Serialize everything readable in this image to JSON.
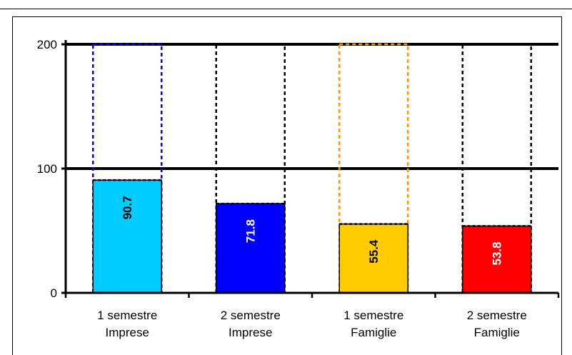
{
  "chart_data": {
    "type": "bar",
    "categories": [
      [
        "1 semestre",
        "Imprese"
      ],
      [
        "2 semestre",
        "Imprese"
      ],
      [
        "1 semestre",
        "Famiglie"
      ],
      [
        "2 semestre",
        "Famiglie"
      ]
    ],
    "values": [
      90.7,
      71.8,
      55.4,
      53.8
    ],
    "value_labels": [
      "90.7",
      "71.8",
      "55.4",
      "53.8"
    ],
    "bar_colors": [
      "#00ccff",
      "#0000ff",
      "#ffcc00",
      "#ff0000"
    ],
    "outline_colors": [
      "#0000ff",
      "#000000",
      "#ff9900",
      "#000000"
    ],
    "label_colors": [
      "#000000",
      "#ffffff",
      "#000000",
      "#ffffff"
    ],
    "reference_max": 200,
    "ylim": [
      0,
      200
    ],
    "yticks": [
      0,
      100,
      200
    ],
    "ytick_labels": [
      "0",
      "100",
      "200"
    ],
    "grid": true,
    "title": "",
    "xlabel": "",
    "ylabel": ""
  }
}
